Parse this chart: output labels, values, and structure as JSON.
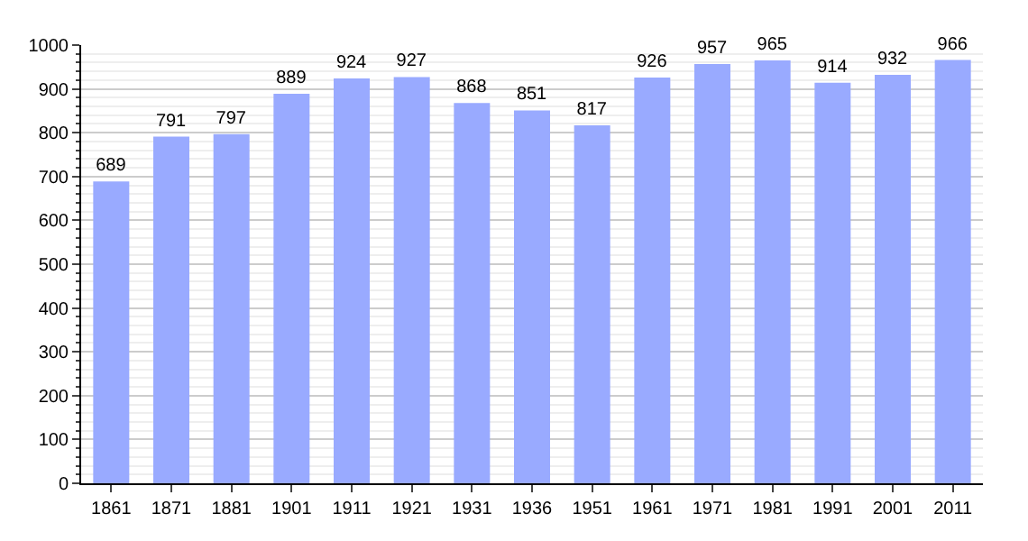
{
  "chart_data": {
    "type": "bar",
    "categories": [
      "1861",
      "1871",
      "1881",
      "1901",
      "1911",
      "1921",
      "1931",
      "1936",
      "1951",
      "1961",
      "1971",
      "1981",
      "1991",
      "2001",
      "2011"
    ],
    "values": [
      689,
      791,
      797,
      889,
      924,
      927,
      868,
      851,
      817,
      926,
      957,
      965,
      914,
      932,
      966
    ],
    "color": "#99aaff",
    "ylim": [
      0,
      1000
    ],
    "yticks": [
      0,
      100,
      200,
      300,
      400,
      500,
      600,
      700,
      800,
      900,
      1000
    ],
    "grid": "y",
    "data_labels": true
  }
}
